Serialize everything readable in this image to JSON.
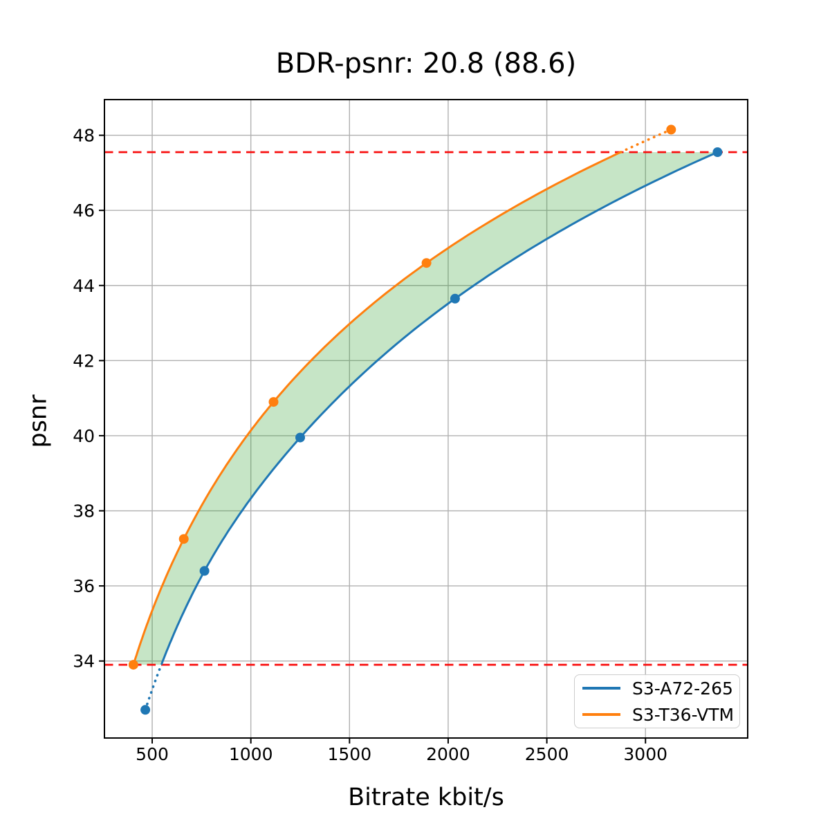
{
  "chart_data": {
    "type": "line",
    "title": "BDR-psnr: 20.8 (88.6)",
    "xlabel": "Bitrate kbit/s",
    "ylabel": "psnr",
    "xlim": [
      258,
      3518
    ],
    "ylim": [
      31.95,
      48.95
    ],
    "x_ticks": [
      500,
      1000,
      1500,
      2000,
      2500,
      3000
    ],
    "y_ticks": [
      34,
      36,
      38,
      40,
      42,
      44,
      46,
      48
    ],
    "grid": true,
    "legend_position": "lower right",
    "series": [
      {
        "name": "S3-A72-265",
        "color": "#1f77b4",
        "points_bitrate_kbits": [
          465,
          765,
          1250,
          2035,
          3365
        ],
        "points_psnr": [
          32.7,
          36.4,
          39.95,
          43.65,
          47.55
        ],
        "dotted_segment": "below_lower_limit"
      },
      {
        "name": "S3-T36-VTM",
        "color": "#ff7f0e",
        "points_bitrate_kbits": [
          405,
          660,
          1115,
          1890,
          3130
        ],
        "points_psnr": [
          33.9,
          37.25,
          40.9,
          44.6,
          48.15
        ],
        "dotted_segment": "above_upper_limit"
      }
    ],
    "hlines": {
      "values": [
        47.55,
        33.9
      ],
      "color": "#f80f0f",
      "style": "dashed"
    },
    "fill_between": {
      "color": "#2ca02c",
      "opacity": 0.27,
      "between_series": [
        "S3-T36-VTM",
        "S3-A72-265"
      ],
      "psnr_range": [
        33.9,
        47.55
      ]
    }
  }
}
